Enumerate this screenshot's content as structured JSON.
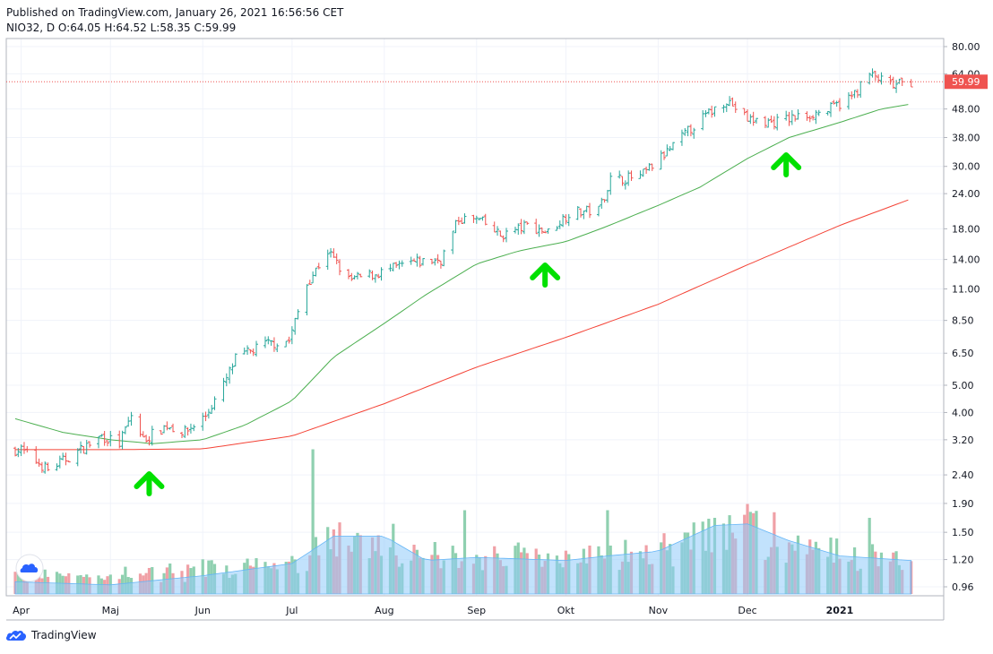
{
  "header": {
    "published": "Published on TradingView.com, January 26, 2021 16:56:56 CET",
    "ohlc": "NIO32, D O:64.05 H:64.52 L:58.35 C:59.99"
  },
  "footer": {
    "brand": "TradingView"
  },
  "colors": {
    "up": "#26a69a",
    "down": "#ef5350",
    "ma_fast": "#4caf50",
    "ma_slow": "#f44336",
    "vol_up": "#8fd0b0",
    "vol_down": "#f0a0a6",
    "vol_ma": "#90caf9",
    "arrow": "#00e000",
    "price_tag": "#ef5350"
  },
  "chart_data": {
    "type": "candlestick",
    "y_scale": "log",
    "y_ticks": [
      "80.00",
      "64.00",
      "48.00",
      "38.00",
      "30.00",
      "24.00",
      "18.00",
      "14.00",
      "11.00",
      "8.50",
      "6.50",
      "5.00",
      "4.00",
      "3.20",
      "2.40",
      "1.90",
      "1.50",
      "1.20",
      "0.96"
    ],
    "x_ticks": [
      "Apr",
      "Maj",
      "Jun",
      "Jul",
      "Aug",
      "Sep",
      "Okt",
      "Nov",
      "Dec",
      "2021"
    ],
    "last_price": "59.99",
    "close_path": [
      [
        "2020-04-01",
        2.95
      ],
      [
        "2020-04-10",
        2.5
      ],
      [
        "2020-04-20",
        2.9
      ],
      [
        "2020-04-28",
        3.3
      ],
      [
        "2020-05-04",
        3.1
      ],
      [
        "2020-05-08",
        3.9
      ],
      [
        "2020-05-12",
        3.2
      ],
      [
        "2020-05-20",
        3.6
      ],
      [
        "2020-05-26",
        3.4
      ],
      [
        "2020-06-02",
        3.9
      ],
      [
        "2020-06-08",
        5.0
      ],
      [
        "2020-06-12",
        6.2
      ],
      [
        "2020-06-22",
        7.0
      ],
      [
        "2020-06-30",
        7.2
      ],
      [
        "2020-07-06",
        11.5
      ],
      [
        "2020-07-13",
        15.0
      ],
      [
        "2020-07-20",
        11.8
      ],
      [
        "2020-07-31",
        12.6
      ],
      [
        "2020-08-10",
        13.6
      ],
      [
        "2020-08-20",
        14.0
      ],
      [
        "2020-08-26",
        19.5
      ],
      [
        "2020-09-02",
        19.3
      ],
      [
        "2020-09-09",
        17.0
      ],
      [
        "2020-09-18",
        18.5
      ],
      [
        "2020-09-25",
        17.5
      ],
      [
        "2020-10-02",
        20.5
      ],
      [
        "2020-10-12",
        21.0
      ],
      [
        "2020-10-16",
        27.0
      ],
      [
        "2020-10-26",
        27.5
      ],
      [
        "2020-11-05",
        34.5
      ],
      [
        "2020-11-13",
        42.0
      ],
      [
        "2020-11-24",
        52.0
      ],
      [
        "2020-12-01",
        44.0
      ],
      [
        "2020-12-09",
        43.0
      ],
      [
        "2020-12-18",
        45.0
      ],
      [
        "2020-12-28",
        47.5
      ],
      [
        "2021-01-05",
        53.0
      ],
      [
        "2021-01-11",
        63.5
      ],
      [
        "2021-01-19",
        58.0
      ],
      [
        "2021-01-25",
        59.99
      ]
    ],
    "ma_fast": [
      [
        "2020-03-30",
        3.8
      ],
      [
        "2020-04-15",
        3.4
      ],
      [
        "2020-05-01",
        3.2
      ],
      [
        "2020-05-15",
        3.1
      ],
      [
        "2020-06-01",
        3.2
      ],
      [
        "2020-06-15",
        3.6
      ],
      [
        "2020-07-01",
        4.4
      ],
      [
        "2020-07-15",
        6.3
      ],
      [
        "2020-08-01",
        8.3
      ],
      [
        "2020-08-15",
        10.5
      ],
      [
        "2020-09-01",
        13.5
      ],
      [
        "2020-09-15",
        15.0
      ],
      [
        "2020-10-01",
        16.2
      ],
      [
        "2020-10-15",
        18.4
      ],
      [
        "2020-11-01",
        21.8
      ],
      [
        "2020-11-15",
        25.3
      ],
      [
        "2020-12-01",
        32.0
      ],
      [
        "2020-12-15",
        38.0
      ],
      [
        "2021-01-01",
        43.0
      ],
      [
        "2021-01-15",
        48.0
      ],
      [
        "2021-01-25",
        50.0
      ]
    ],
    "ma_slow": [
      [
        "2020-03-30",
        2.95
      ],
      [
        "2020-05-01",
        2.95
      ],
      [
        "2020-06-01",
        2.97
      ],
      [
        "2020-07-01",
        3.3
      ],
      [
        "2020-08-01",
        4.3
      ],
      [
        "2020-09-01",
        5.8
      ],
      [
        "2020-10-01",
        7.4
      ],
      [
        "2020-11-01",
        9.7
      ],
      [
        "2020-12-01",
        13.4
      ],
      [
        "2021-01-01",
        18.5
      ],
      [
        "2021-01-25",
        23.0
      ]
    ],
    "volume_spikes": [
      [
        "2020-07-08",
        0.95
      ],
      [
        "2020-08-28",
        0.55
      ],
      [
        "2020-10-15",
        0.55
      ],
      [
        "2020-11-15",
        0.98
      ],
      [
        "2020-11-20",
        0.5
      ],
      [
        "2020-11-30",
        0.52
      ],
      [
        "2021-01-11",
        0.5
      ]
    ],
    "volume_ma": [
      [
        "2020-03-30",
        0.08
      ],
      [
        "2020-05-01",
        0.06
      ],
      [
        "2020-06-01",
        0.12
      ],
      [
        "2020-07-01",
        0.2
      ],
      [
        "2020-07-15",
        0.38
      ],
      [
        "2020-08-01",
        0.38
      ],
      [
        "2020-08-15",
        0.22
      ],
      [
        "2020-09-01",
        0.24
      ],
      [
        "2020-10-01",
        0.22
      ],
      [
        "2020-10-15",
        0.25
      ],
      [
        "2020-11-01",
        0.28
      ],
      [
        "2020-11-20",
        0.45
      ],
      [
        "2020-12-01",
        0.46
      ],
      [
        "2020-12-15",
        0.35
      ],
      [
        "2021-01-01",
        0.25
      ],
      [
        "2021-01-25",
        0.22
      ]
    ],
    "arrows": [
      "2020-05-14",
      "2020-09-24",
      "2020-12-14"
    ]
  }
}
